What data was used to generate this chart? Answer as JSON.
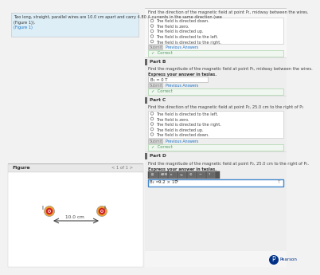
{
  "bg_color": "#f2f2f2",
  "white": "#ffffff",
  "blue_text": "#1a73c8",
  "green_color": "#4a9e5c",
  "light_blue_bg": "#ddeef7",
  "border_color": "#c8c8c8",
  "gray_bg": "#ebebeb",
  "problem_text_line1": "Two long, straight, parallel wires are 10.0 cm apart and carry 4.80 A currents in the same direction (see",
  "problem_text_line2": "(Figure 1)).",
  "figure_link": "(Figure 1)",
  "figure_label": "Figure",
  "figure_nav": "< 1 of 1 >",
  "distance_label": "10.0 cm",
  "partA_question": "Find the direction of the magnetic field at point P₁, midway between the wires.",
  "partA_options": [
    "The field is directed down.",
    "The field is zero.",
    "The field is directed up.",
    "The field is directed to the left.",
    "The field is directed to the right."
  ],
  "submit_label": "Submit",
  "prev_answers_label": "Previous Answers",
  "correct_label": "✓  Correct",
  "partB_label": "Part B",
  "partB_question": "Find the magnitude of the magnetic field at point P₁, midway between the wires.",
  "partB_express": "Express your answer in teslas.",
  "partB_answer": "B₁ = 0 T",
  "partC_label": "Part C",
  "partC_question": "Find the direction of the magnetic field at point P₂, 25.0 cm to the right of P₁",
  "partC_options": [
    "The field is directed to the left.",
    "The field is zero.",
    "The field is directed to the right.",
    "The field is directed up.",
    "The field is directed down."
  ],
  "partD_label": "Part D",
  "partD_question": "Find the magnitude of the magnetic field at point P₂, 25.0 cm to the right of P₁.",
  "partD_express": "Express your answer in teslas.",
  "partD_answer_prefix": "B₂ =",
  "partD_answer_value": "9.2 × 10",
  "partD_exponent": "−6",
  "partD_T": "T",
  "pearson_color": "#003087",
  "wire_orange": "#f0a030",
  "wire_red": "#cc2222",
  "current_label": "I"
}
